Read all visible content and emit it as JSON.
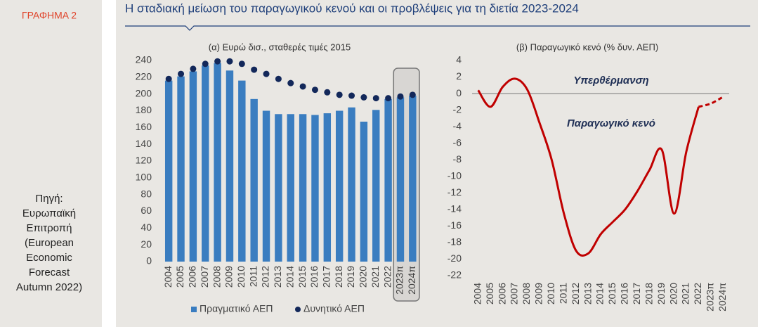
{
  "sidebar": {
    "label": "ΓΡΑΦΗΜΑ 2",
    "source": [
      "Πηγή:",
      "Ευρωπαϊκή",
      "Επιτροπή",
      "(European",
      "Economic",
      "Forecast",
      "Autumn 2022)"
    ]
  },
  "header": {
    "title": "Η σταδιακή μείωση του παραγωγικού κενού και οι προβλέψεις για τη διετία 2023-2024"
  },
  "chart_data": [
    {
      "type": "bar",
      "title": "(α) Ευρώ δισ., σταθερές τιμές 2015",
      "categories": [
        "2004",
        "2005",
        "2006",
        "2007",
        "2008",
        "2009",
        "2010",
        "2011",
        "2012",
        "2013",
        "2014",
        "2015",
        "2016",
        "2017",
        "2018",
        "2019",
        "2020",
        "2021",
        "2022",
        "2023π",
        "2024π"
      ],
      "series": [
        {
          "name": "Πραγματικό ΑΕΠ",
          "type": "bar",
          "color": "#3a7dc0",
          "values": [
            216,
            221,
            227,
            234,
            237,
            228,
            216,
            194,
            180,
            176,
            176,
            176,
            175,
            177,
            180,
            184,
            167,
            181,
            194,
            196,
            198
          ]
        },
        {
          "name": "Δυνητικό ΑΕΠ",
          "type": "dots",
          "color": "#13285a",
          "values": [
            218,
            224,
            230,
            236,
            239,
            239,
            236,
            229,
            224,
            218,
            213,
            209,
            205,
            202,
            199,
            198,
            196,
            195,
            195,
            197,
            199
          ]
        }
      ],
      "ylim": [
        0,
        240
      ],
      "yticks": [
        0,
        20,
        40,
        60,
        80,
        100,
        120,
        140,
        160,
        180,
        200,
        220,
        240
      ]
    },
    {
      "type": "line",
      "title": "(β) Παραγωγικό κενό (% δυν. ΑΕΠ)",
      "categories": [
        "2004",
        "2005",
        "2006",
        "2007",
        "2008",
        "2009",
        "2010",
        "2011",
        "2012",
        "2013",
        "2014",
        "2015",
        "2016",
        "2017",
        "2018",
        "2019",
        "2020",
        "2021",
        "2022",
        "2023π",
        "2024π"
      ],
      "series": [
        {
          "color": "#c00000",
          "style": "solid",
          "values": [
            0.4,
            -1.6,
            0.8,
            1.8,
            0.5,
            -3.5,
            -8.0,
            -14.5,
            -19.0,
            -19.3,
            -17.0,
            -15.5,
            -14.0,
            -11.8,
            -9.2,
            -6.8,
            -14.5,
            -7.0,
            -1.6,
            null,
            null
          ]
        },
        {
          "color": "#c00000",
          "style": "dashed",
          "values": [
            null,
            null,
            null,
            null,
            null,
            null,
            null,
            null,
            null,
            null,
            null,
            null,
            null,
            null,
            null,
            null,
            null,
            null,
            -1.6,
            -1.2,
            -0.4
          ]
        }
      ],
      "ylim": [
        -22,
        4
      ],
      "yticks": [
        4,
        2,
        0,
        -2,
        -4,
        -6,
        -8,
        -10,
        -12,
        -14,
        -16,
        -18,
        -20,
        -22
      ],
      "annotations": [
        "Υπερθέρμανση",
        "Παραγωγικό κενό"
      ]
    }
  ]
}
